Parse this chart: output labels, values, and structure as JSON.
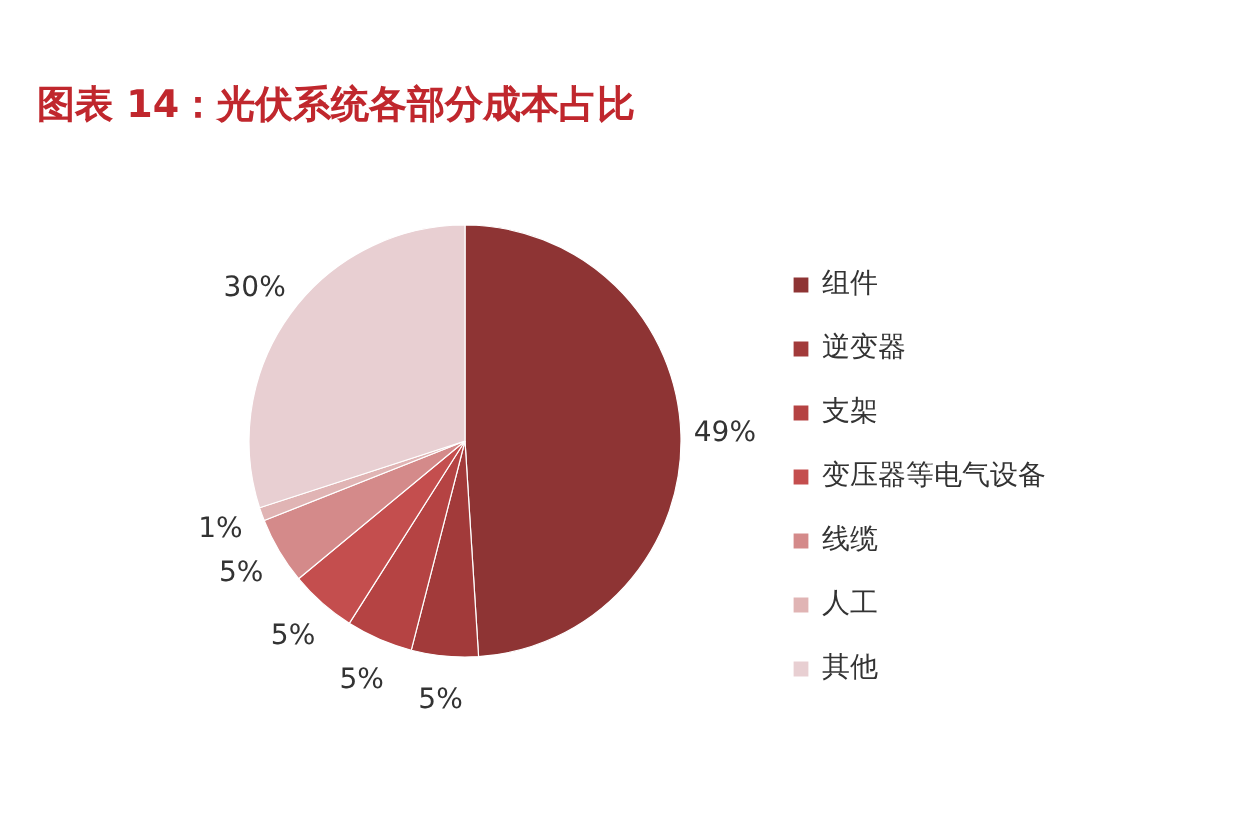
{
  "chart_data": {
    "type": "pie",
    "title": "图表 14：光伏系统各部分成本占比",
    "categories": [
      "组件",
      "逆变器",
      "支架",
      "变压器等电气设备",
      "线缆",
      "人工",
      "其他"
    ],
    "values": [
      49,
      5,
      5,
      5,
      5,
      1,
      30
    ],
    "colors": [
      "#8e3434",
      "#a23a3a",
      "#b54343",
      "#c44e4e",
      "#d48a8a",
      "#e0b4b4",
      "#e8cfd2"
    ],
    "value_labels": [
      "49%",
      "5%",
      "5%",
      "5%",
      "5%",
      "1%",
      "30%"
    ],
    "legend": "right"
  }
}
